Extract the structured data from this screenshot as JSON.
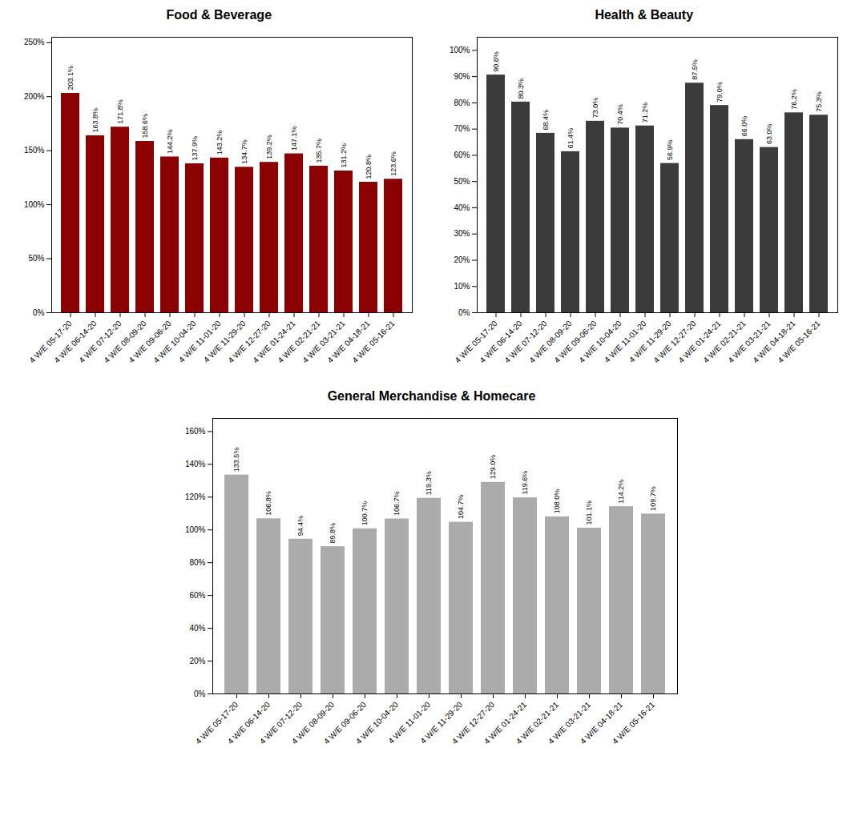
{
  "chart_data": [
    {
      "type": "bar",
      "title": "Food & Beverage",
      "color": "#8B0000",
      "categories": [
        "4 W/E 05-17-20",
        "4 W/E 06-14-20",
        "4 W/E 07-12-20",
        "4 W/E 08-09-20",
        "4 W/E 09-06-20",
        "4 W/E 10-04-20",
        "4 W/E 11-01-20",
        "4 W/E 11-29-20",
        "4 W/E 12-27-20",
        "4 W/E 01-24-21",
        "4 W/E 02-21-21",
        "4 W/E 03-21-21",
        "4 W/E 04-18-21",
        "4 W/E 05-16-21"
      ],
      "values": [
        203.1,
        163.8,
        171.8,
        158.6,
        144.2,
        137.9,
        143.2,
        134.7,
        139.2,
        147.1,
        135.7,
        131.2,
        120.8,
        123.6
      ],
      "value_labels": [
        "203.1%",
        "163.8%",
        "171.8%",
        "158.6%",
        "144.2%",
        "137.9%",
        "143.2%",
        "134.7%",
        "139.2%",
        "147.1%",
        "135.7%",
        "131.2%",
        "120.8%",
        "123.6%"
      ],
      "ylim": [
        0,
        255
      ],
      "yticks": [
        {
          "value": 0,
          "label": "0%"
        },
        {
          "value": 50,
          "label": "50%"
        },
        {
          "value": 100,
          "label": "100%"
        },
        {
          "value": 150,
          "label": "150%"
        },
        {
          "value": 200,
          "label": "200%"
        },
        {
          "value": 250,
          "label": "250%"
        }
      ],
      "grid": false,
      "data_labels": true
    },
    {
      "type": "bar",
      "title": "Health & Beauty",
      "color": "#3B3B3B",
      "categories": [
        "4 W/E 05-17-20",
        "4 W/E 06-14-20",
        "4 W/E 07-12-20",
        "4 W/E 08-09-20",
        "4 W/E 09-06-20",
        "4 W/E 10-04-20",
        "4 W/E 11-01-20",
        "4 W/E 11-29-20",
        "4 W/E 12-27-20",
        "4 W/E 01-24-21",
        "4 W/E 02-21-21",
        "4 W/E 03-21-21",
        "4 W/E 04-18-21",
        "4 W/E 05-16-21"
      ],
      "values": [
        90.6,
        80.3,
        68.4,
        61.4,
        73.0,
        70.4,
        71.2,
        56.9,
        87.5,
        79.0,
        66.0,
        63.0,
        76.2,
        75.3
      ],
      "value_labels": [
        "90.6%",
        "80.3%",
        "68.4%",
        "61.4%",
        "73.0%",
        "70.4%",
        "71.2%",
        "56.9%",
        "87.5%",
        "79.0%",
        "66.0%",
        "63.0%",
        "76.2%",
        "75.3%"
      ],
      "ylim": [
        0,
        105
      ],
      "yticks": [
        {
          "value": 0,
          "label": "0%"
        },
        {
          "value": 10,
          "label": "10%"
        },
        {
          "value": 20,
          "label": "20%"
        },
        {
          "value": 30,
          "label": "30%"
        },
        {
          "value": 40,
          "label": "40%"
        },
        {
          "value": 50,
          "label": "50%"
        },
        {
          "value": 60,
          "label": "60%"
        },
        {
          "value": 70,
          "label": "70%"
        },
        {
          "value": 80,
          "label": "80%"
        },
        {
          "value": 90,
          "label": "90%"
        },
        {
          "value": 100,
          "label": "100%"
        }
      ],
      "grid": false,
      "data_labels": true
    },
    {
      "type": "bar",
      "title": "General Merchandise & Homecare",
      "color": "#ABABAB",
      "categories": [
        "4 W/E 05-17-20",
        "4 W/E 06-14-20",
        "4 W/E 07-12-20",
        "4 W/E 08-09-20",
        "4 W/E 09-06-20",
        "4 W/E 10-04-20",
        "4 W/E 11-01-20",
        "4 W/E 11-29-20",
        "4 W/E 12-27-20",
        "4 W/E 01-24-21",
        "4 W/E 02-21-21",
        "4 W/E 03-21-21",
        "4 W/E 04-18-21",
        "4 W/E 05-16-21"
      ],
      "values": [
        133.5,
        106.8,
        94.4,
        89.8,
        100.7,
        106.7,
        119.3,
        104.7,
        129.0,
        119.6,
        108.0,
        101.1,
        114.2,
        109.7
      ],
      "value_labels": [
        "133.5%",
        "106.8%",
        "94.4%",
        "89.8%",
        "100.7%",
        "106.7%",
        "119.3%",
        "104.7%",
        "129.0%",
        "119.6%",
        "108.0%",
        "101.1%",
        "114.2%",
        "109.7%"
      ],
      "ylim": [
        0,
        168
      ],
      "yticks": [
        {
          "value": 0,
          "label": "0%"
        },
        {
          "value": 20,
          "label": "20%"
        },
        {
          "value": 40,
          "label": "40%"
        },
        {
          "value": 60,
          "label": "60%"
        },
        {
          "value": 80,
          "label": "80%"
        },
        {
          "value": 100,
          "label": "100%"
        },
        {
          "value": 120,
          "label": "120%"
        },
        {
          "value": 140,
          "label": "140%"
        },
        {
          "value": 160,
          "label": "160%"
        }
      ],
      "grid": false,
      "data_labels": true
    }
  ]
}
